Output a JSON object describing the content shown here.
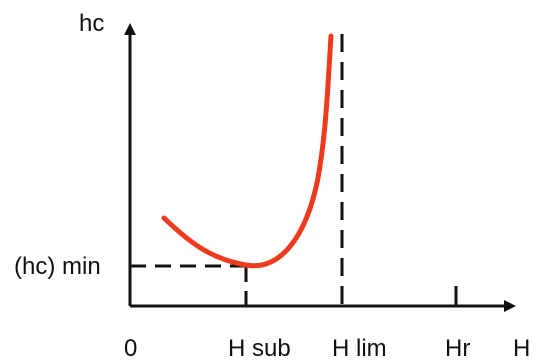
{
  "diagram": {
    "axes": {
      "y_label": "hc",
      "x_label": "H"
    },
    "labels": {
      "origin": "0",
      "hc_min": "(hc) min",
      "h_sub": "H sub",
      "h_lim": "H lim",
      "hr": "Hr"
    },
    "colors": {
      "axis": "#111111",
      "curve": "#ee3a1e",
      "guides": "#111111",
      "background": "#ffffff"
    },
    "elements": {
      "curve": "red-u-shaped-curve",
      "limit_line": "vertical-dashed-line-at-h-lim",
      "minimum_guides": "dashed-guides-from-minimum-to-axes",
      "hr_tick": "solid-tick-at-hr"
    }
  }
}
